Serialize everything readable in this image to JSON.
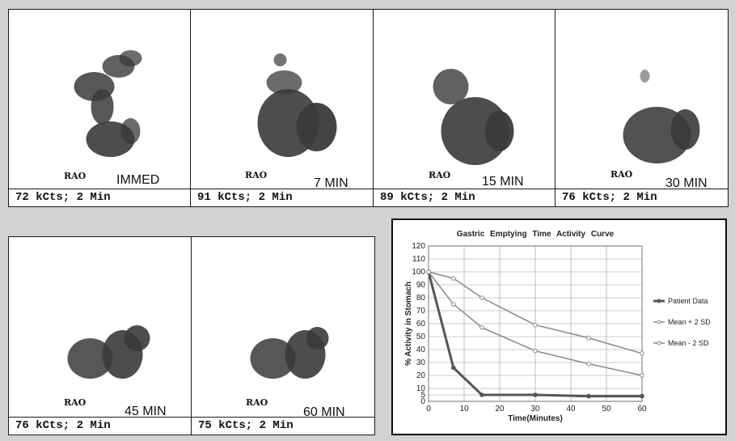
{
  "colors": {
    "background": "#d2d2d2",
    "frame": "#ffffff",
    "tracer": "#3a3a3a",
    "patient_line": "#555555",
    "sd_line": "#8a8a8a"
  },
  "frames": [
    {
      "view": "RAO",
      "time": "IMMED",
      "counts": "72 kCts; 2 Min"
    },
    {
      "view": "RAO",
      "time": "7 MIN",
      "counts": "91 kCts; 2 Min"
    },
    {
      "view": "RAO",
      "time": "15 MIN",
      "counts": "89 kCts; 2 Min"
    },
    {
      "view": "RAO",
      "time": "30 MIN",
      "counts": "76 kCts; 2 Min"
    },
    {
      "view": "RAO",
      "time": "45 MIN",
      "counts": "76 kCts; 2 Min"
    },
    {
      "view": "RAO",
      "time": "60 MIN",
      "counts": "75 kCts; 2 Min"
    }
  ],
  "chart_data": {
    "type": "line",
    "title": "Gastric Emptying Time Activity Curve",
    "xlabel": "Time(Minutes)",
    "ylabel": "% Activity in Stomach",
    "xlim": [
      0,
      60
    ],
    "ylim": [
      0,
      120
    ],
    "xticks": [
      0,
      10,
      20,
      30,
      40,
      50,
      60
    ],
    "yticks": [
      0,
      5,
      10,
      20,
      30,
      40,
      50,
      60,
      70,
      80,
      90,
      100,
      110,
      120
    ],
    "grid": true,
    "legend_position": "right",
    "series": [
      {
        "name": "Patient Data",
        "x": [
          0,
          7,
          15,
          30,
          45,
          60
        ],
        "y": [
          100,
          26,
          5,
          5,
          4,
          4
        ],
        "marker": "filled"
      },
      {
        "name": "Mean + 2 SD",
        "x": [
          0,
          7,
          15,
          30,
          45,
          60
        ],
        "y": [
          100,
          95,
          80,
          59,
          49,
          37
        ],
        "marker": "open"
      },
      {
        "name": "Mean - 2 SD",
        "x": [
          0,
          7,
          15,
          30,
          45,
          60
        ],
        "y": [
          100,
          75,
          57,
          39,
          29,
          20
        ],
        "marker": "open"
      }
    ]
  }
}
